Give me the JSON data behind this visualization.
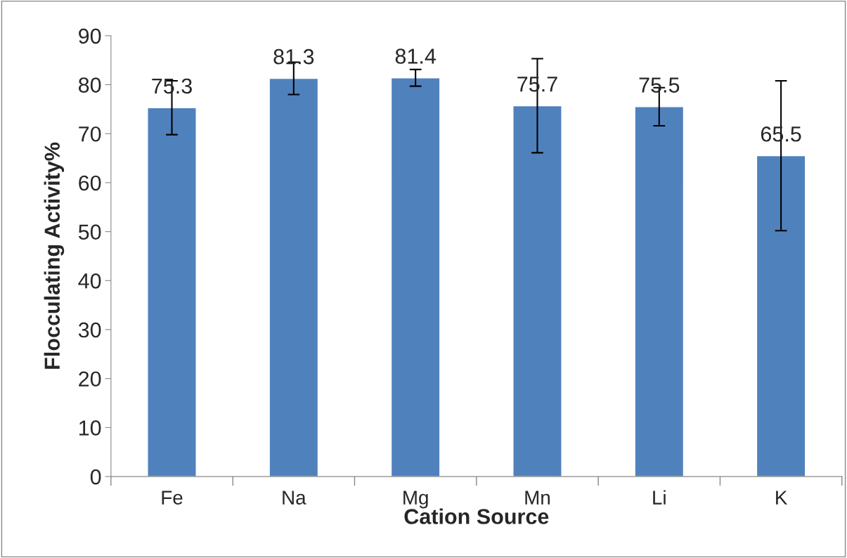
{
  "chart_data": {
    "type": "bar",
    "xlabel": "Cation Source",
    "ylabel": "Flocculating Activity%",
    "categories": [
      "Fe",
      "Na",
      "Mg",
      "Mn",
      "Li",
      "K"
    ],
    "values": [
      75.3,
      81.3,
      81.4,
      75.7,
      75.5,
      65.5
    ],
    "errors": [
      5.5,
      3.3,
      1.7,
      9.6,
      3.9,
      15.3
    ],
    "color": "#4f81bd",
    "data_labels": true,
    "ylim": [
      0,
      90
    ],
    "yticks": [
      0,
      10,
      20,
      30,
      40,
      50,
      60,
      70,
      80,
      90
    ],
    "grid": false,
    "legend": false
  }
}
